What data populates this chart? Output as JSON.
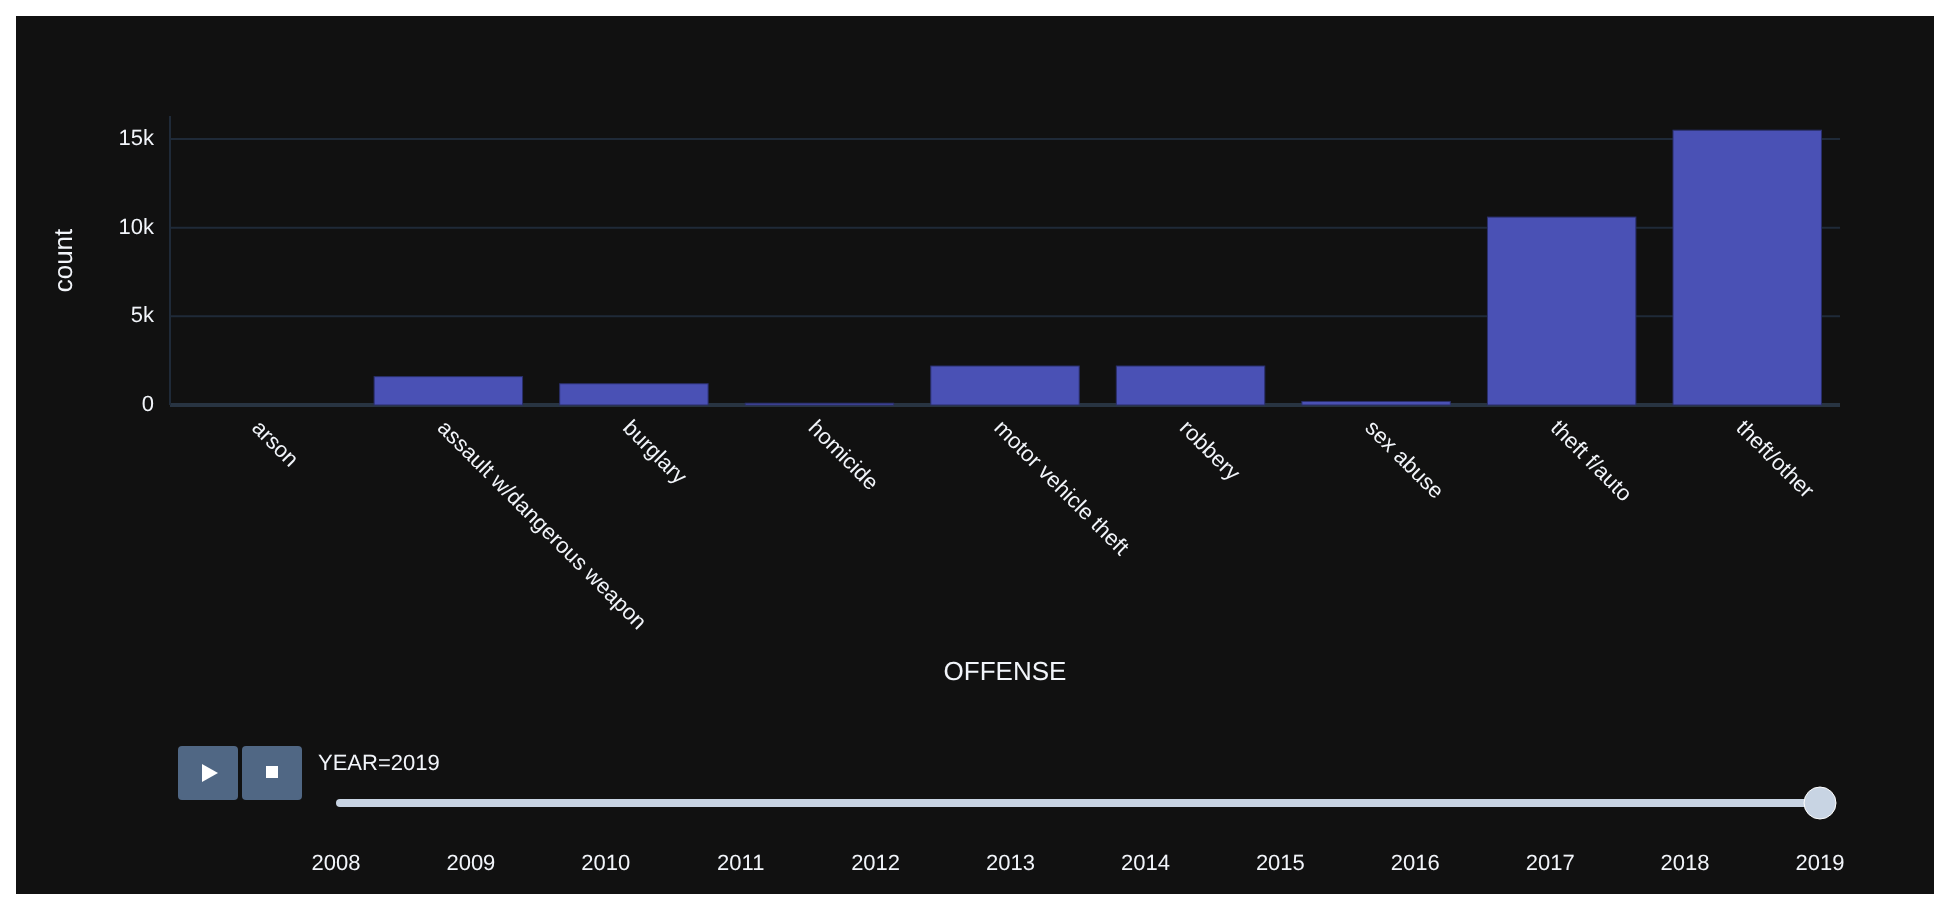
{
  "chart_data": {
    "type": "bar",
    "xlabel": "OFFENSE",
    "ylabel": "count",
    "categories": [
      "arson",
      "assault w/dangerous weapon",
      "burglary",
      "homicide",
      "motor vehicle theft",
      "robbery",
      "sex abuse",
      "theft f/auto",
      "theft/other"
    ],
    "values": [
      0,
      1600,
      1200,
      100,
      2200,
      2200,
      200,
      10600,
      15500
    ],
    "color": "#4a51b5",
    "ylim": [
      0,
      16300
    ],
    "yticks": [
      {
        "value": 0,
        "label": "0"
      },
      {
        "value": 5000,
        "label": "5k"
      },
      {
        "value": 10000,
        "label": "10k"
      },
      {
        "value": 15000,
        "label": "15k"
      }
    ],
    "grid": "y",
    "annotations": [
      "YEAR=2019",
      "2008",
      "2009",
      "2010",
      "2011",
      "2012",
      "2013",
      "2014",
      "2015",
      "2016",
      "2017",
      "2018",
      "2019"
    ]
  }
}
